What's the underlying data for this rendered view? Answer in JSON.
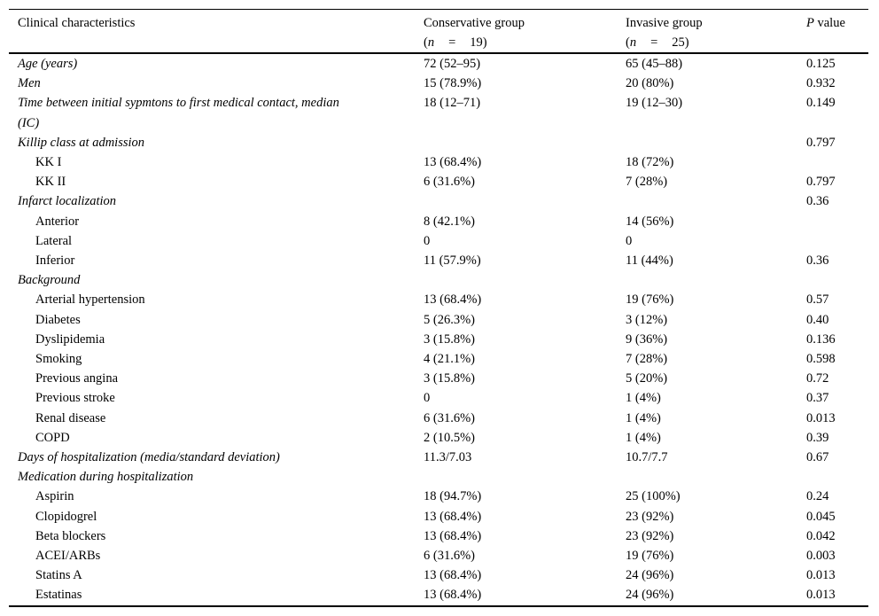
{
  "table": {
    "header": {
      "characteristics": "Clinical characteristics",
      "conservative": {
        "name": "Conservative group",
        "n_open": "(",
        "n_symbol": "n",
        "n_eq": "=",
        "n_value": "19)"
      },
      "invasive": {
        "name": "Invasive group",
        "n_open": "(",
        "n_symbol": "n",
        "n_eq": "=",
        "n_value": "25)"
      },
      "p_italic": "P",
      "p_rest": " value"
    },
    "rows": [
      {
        "label": "Age (years)",
        "level": 0,
        "conservative": "72 (52–95)",
        "invasive": "65 (45–88)",
        "p": "0.125"
      },
      {
        "label": "Men",
        "level": 0,
        "conservative": "15 (78.9%)",
        "invasive": "20 (80%)",
        "p": "0.932"
      },
      {
        "label": "Time between initial sypmtons to first medical contact, median\n(IC)",
        "level": 0,
        "conservative": "18 (12–71)",
        "invasive": "19 (12–30)",
        "p": "0.149"
      },
      {
        "label": "Killip class at admission",
        "level": 0,
        "conservative": "",
        "invasive": "",
        "p": "0.797"
      },
      {
        "label": "KK I",
        "level": 1,
        "conservative": "13 (68.4%)",
        "invasive": "18 (72%)",
        "p": ""
      },
      {
        "label": "KK II",
        "level": 1,
        "conservative": "6 (31.6%)",
        "invasive": "7 (28%)",
        "p": "0.797"
      },
      {
        "label": "Infarct localization",
        "level": 0,
        "conservative": "",
        "invasive": "",
        "p": "0.36"
      },
      {
        "label": "Anterior",
        "level": 1,
        "conservative": "8 (42.1%)",
        "invasive": "14 (56%)",
        "p": ""
      },
      {
        "label": "Lateral",
        "level": 1,
        "conservative": "0",
        "invasive": "0",
        "p": ""
      },
      {
        "label": "Inferior",
        "level": 1,
        "conservative": "11 (57.9%)",
        "invasive": "11 (44%)",
        "p": "0.36"
      },
      {
        "label": "Background",
        "level": 0,
        "conservative": "",
        "invasive": "",
        "p": ""
      },
      {
        "label": "Arterial hypertension",
        "level": 1,
        "conservative": "13 (68.4%)",
        "invasive": "19 (76%)",
        "p": "0.57"
      },
      {
        "label": "Diabetes",
        "level": 1,
        "conservative": "5 (26.3%)",
        "invasive": "3 (12%)",
        "p": "0.40"
      },
      {
        "label": "Dyslipidemia",
        "level": 1,
        "conservative": "3 (15.8%)",
        "invasive": "9 (36%)",
        "p": "0.136"
      },
      {
        "label": "Smoking",
        "level": 1,
        "conservative": "4 (21.1%)",
        "invasive": "7 (28%)",
        "p": "0.598"
      },
      {
        "label": "Previous angina",
        "level": 1,
        "conservative": "3 (15.8%)",
        "invasive": "5 (20%)",
        "p": "0.72"
      },
      {
        "label": "Previous stroke",
        "level": 1,
        "conservative": "0",
        "invasive": "1 (4%)",
        "p": "0.37"
      },
      {
        "label": "Renal disease",
        "level": 1,
        "conservative": "6 (31.6%)",
        "invasive": "1 (4%)",
        "p": "0.013"
      },
      {
        "label": "COPD",
        "level": 1,
        "conservative": "2 (10.5%)",
        "invasive": "1 (4%)",
        "p": "0.39"
      },
      {
        "label": "Days of hospitalization (media/standard deviation)",
        "level": 0,
        "conservative": "11.3/7.03",
        "invasive": "10.7/7.7",
        "p": "0.67"
      },
      {
        "label": "Medication during hospitalization",
        "level": 0,
        "conservative": "",
        "invasive": "",
        "p": ""
      },
      {
        "label": "Aspirin",
        "level": 1,
        "conservative": "18 (94.7%)",
        "invasive": "25 (100%)",
        "p": "0.24"
      },
      {
        "label": "Clopidogrel",
        "level": 1,
        "conservative": "13 (68.4%)",
        "invasive": "23 (92%)",
        "p": "0.045"
      },
      {
        "label": "Beta blockers",
        "level": 1,
        "conservative": "13 (68.4%)",
        "invasive": "23 (92%)",
        "p": "0.042"
      },
      {
        "label": "ACEI/ARBs",
        "level": 1,
        "conservative": "6 (31.6%)",
        "invasive": "19 (76%)",
        "p": "0.003"
      },
      {
        "label": "Statins A",
        "level": 1,
        "conservative": "13 (68.4%)",
        "invasive": "24 (96%)",
        "p": "0.013"
      },
      {
        "label": "Estatinas",
        "level": 1,
        "conservative": "13 (68.4%)",
        "invasive": "24 (96%)",
        "p": "0.013"
      }
    ]
  }
}
